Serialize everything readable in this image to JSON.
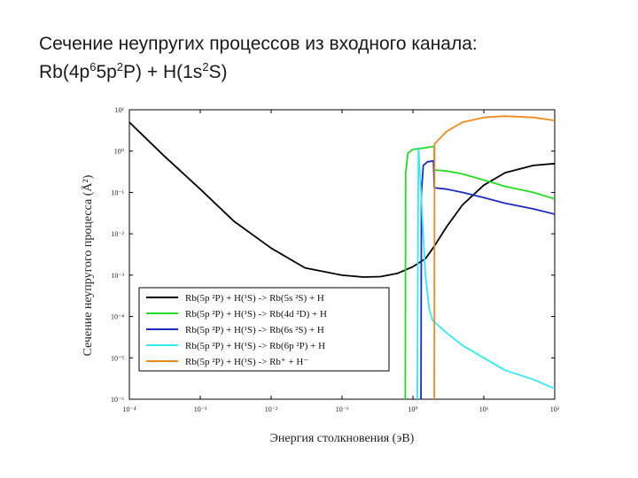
{
  "title": {
    "line1": "Сечение неупругих процессов из входного канала:",
    "line2_parts": [
      "Rb(4p",
      "6",
      "5p",
      "2",
      "P) + H(1s",
      "2",
      "S)"
    ]
  },
  "chart_data": {
    "type": "line",
    "xlabel": "Энергия столкновения (эВ)",
    "ylabel": "Сечение неупругого процесса (Å²)",
    "xscale": "log",
    "yscale": "log",
    "xlim": [
      0.0001,
      100
    ],
    "ylim": [
      1e-06,
      10
    ],
    "xtick_labels": [
      "10⁻⁴",
      "10⁻³",
      "10⁻²",
      "10⁻¹",
      "10⁰",
      "10¹",
      "10²"
    ],
    "ytick_labels": [
      "10⁻⁶",
      "10⁻⁵",
      "10⁻⁴",
      "10⁻³",
      "10⁻²",
      "10⁻¹",
      "10⁰",
      "10¹"
    ],
    "legend_position": "bottom-left",
    "series": [
      {
        "name": "Rb(5p ²P) + H(¹S) -> Rb(5s ²S) + H",
        "color": "#000000",
        "points": [
          [
            0.0001,
            5.0
          ],
          [
            0.0003,
            0.8
          ],
          [
            0.001,
            0.12
          ],
          [
            0.003,
            0.02
          ],
          [
            0.01,
            0.0045
          ],
          [
            0.03,
            0.0015
          ],
          [
            0.1,
            0.001
          ],
          [
            0.2,
            0.0009
          ],
          [
            0.35,
            0.00092
          ],
          [
            0.6,
            0.0011
          ],
          [
            1.0,
            0.0016
          ],
          [
            1.5,
            0.0025
          ],
          [
            2.0,
            0.005
          ],
          [
            3.0,
            0.015
          ],
          [
            5.0,
            0.05
          ],
          [
            10.0,
            0.15
          ],
          [
            20.0,
            0.3
          ],
          [
            50.0,
            0.45
          ],
          [
            100.0,
            0.5
          ]
        ]
      },
      {
        "name": "Rb(5p ²P) + H(¹S) -> Rb(4d ²D) + H",
        "color": "#22dd22",
        "points": [
          [
            0.78,
            1e-06
          ],
          [
            0.79,
            0.3
          ],
          [
            0.85,
            0.9
          ],
          [
            1.0,
            1.1
          ],
          [
            1.5,
            1.2
          ],
          [
            1.99,
            1.3
          ],
          [
            2.0,
            0.35
          ],
          [
            3.0,
            0.33
          ],
          [
            5.0,
            0.28
          ],
          [
            10.0,
            0.2
          ],
          [
            20.0,
            0.14
          ],
          [
            50.0,
            0.1
          ],
          [
            100.0,
            0.07
          ]
        ]
      },
      {
        "name": "Rb(5p ²P) + H(¹S) -> Rb(6s ²S) + H",
        "color": "#1a2bbf",
        "points": [
          [
            1.3,
            1e-06
          ],
          [
            1.32,
            0.1
          ],
          [
            1.4,
            0.45
          ],
          [
            1.6,
            0.55
          ],
          [
            1.95,
            0.58
          ],
          [
            2.0,
            0.13
          ],
          [
            3.0,
            0.12
          ],
          [
            5.0,
            0.1
          ],
          [
            10.0,
            0.075
          ],
          [
            20.0,
            0.055
          ],
          [
            50.0,
            0.04
          ],
          [
            100.0,
            0.03
          ]
        ]
      },
      {
        "name": "Rb(5p ²P) + H(¹S) -> Rb(6p ²P) + H",
        "color": "#33eaf0",
        "points": [
          [
            1.15,
            1e-06
          ],
          [
            1.18,
            0.02
          ],
          [
            1.2,
            1.2
          ],
          [
            1.3,
            0.1
          ],
          [
            1.5,
            0.001
          ],
          [
            1.7,
            0.00015
          ],
          [
            1.9,
            8e-05
          ],
          [
            3.0,
            4e-05
          ],
          [
            5.0,
            2e-05
          ],
          [
            10.0,
            1e-05
          ],
          [
            20.0,
            5e-06
          ],
          [
            50.0,
            3e-06
          ],
          [
            100.0,
            1.8e-06
          ]
        ]
      },
      {
        "name": "Rb(5p ²P) + H(¹S) -> Rb⁺ + H⁻",
        "color": "#f08a1e",
        "points": [
          [
            2.0,
            1e-06
          ],
          [
            2.02,
            1.5
          ],
          [
            3.0,
            3.0
          ],
          [
            5.0,
            5.0
          ],
          [
            10.0,
            6.5
          ],
          [
            20.0,
            7.0
          ],
          [
            50.0,
            6.5
          ],
          [
            100.0,
            5.5
          ]
        ]
      }
    ]
  }
}
